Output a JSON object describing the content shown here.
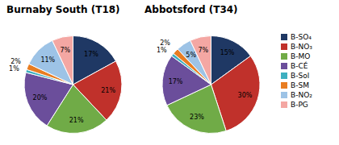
{
  "chart_data": [
    {
      "type": "pie",
      "title": "Burnaby South (T18)",
      "categories": [
        "B-SO₄",
        "B-NO₃",
        "B-MO",
        "B-CÉ",
        "B-Sol",
        "B-SM",
        "B-NO₂",
        "B-PG"
      ],
      "values": [
        17,
        21,
        21,
        20,
        1,
        2,
        11,
        7
      ],
      "value_labels": [
        "17%",
        "21%",
        "21%",
        "20%",
        "1%",
        "2%",
        "11%",
        "7%"
      ],
      "colors": [
        "#1F3864",
        "#C0312B",
        "#70AB47",
        "#6B4E9B",
        "#3EAFC0",
        "#E87D22",
        "#9DC3E6",
        "#F4A7A3"
      ],
      "data_labels": true,
      "legend": "right"
    },
    {
      "type": "pie",
      "title": "Abbotsford (T34)",
      "categories": [
        "B-SO₄",
        "B-NO₃",
        "B-MO",
        "B-CÉ",
        "B-Sol",
        "B-SM",
        "B-NO₂",
        "B-PG"
      ],
      "values": [
        15,
        30,
        23,
        17,
        1,
        2,
        5,
        7
      ],
      "value_labels": [
        "15%",
        "30%",
        "23%",
        "17%",
        "1%",
        "2%",
        "5%",
        "7%"
      ],
      "colors": [
        "#1F3864",
        "#C0312B",
        "#70AB47",
        "#6B4E9B",
        "#3EAFC0",
        "#E87D22",
        "#9DC3E6",
        "#F4A7A3"
      ],
      "data_labels": true
    }
  ]
}
